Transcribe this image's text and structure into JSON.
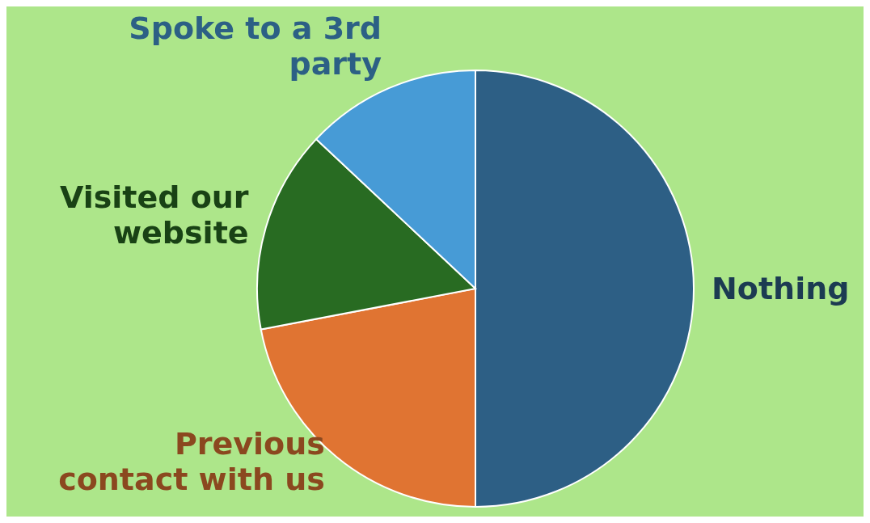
{
  "chart_data": {
    "type": "pie",
    "categories": [
      "Nothing",
      "Previous contact with us",
      "Visited our website",
      "Spoke to a 3rd party"
    ],
    "values": [
      50,
      22,
      15,
      13
    ],
    "colors": [
      "#2d5f85",
      "#e07432",
      "#286b22",
      "#479bd6"
    ]
  }
}
